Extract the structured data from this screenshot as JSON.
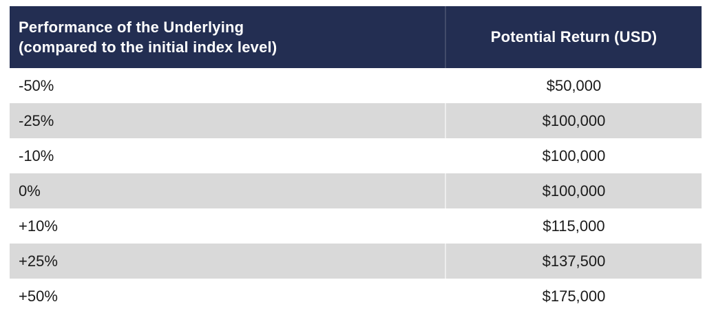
{
  "colors": {
    "header_bg": "#232e52",
    "header_text": "#ffffff",
    "row_bg": "#ffffff",
    "row_alt_bg": "#d9d9d9",
    "body_text": "#1a1a1a",
    "bottom_border": "#8e98aa"
  },
  "table": {
    "header": {
      "performance_line1": "Performance of the Underlying",
      "performance_line2": "(compared to the initial index level)",
      "potential_return": "Potential Return (USD)"
    },
    "rows": [
      {
        "performance": "-50%",
        "potential_return": "$50,000"
      },
      {
        "performance": "-25%",
        "potential_return": "$100,000"
      },
      {
        "performance": "-10%",
        "potential_return": "$100,000"
      },
      {
        "performance": "0%",
        "potential_return": "$100,000"
      },
      {
        "performance": "+10%",
        "potential_return": "$115,000"
      },
      {
        "performance": "+25%",
        "potential_return": "$137,500"
      },
      {
        "performance": "+50%",
        "potential_return": "$175,000"
      }
    ]
  },
  "chart_data": {
    "type": "table",
    "columns": [
      "Performance of the Underlying (compared to the initial index level)",
      "Potential Return (USD)"
    ],
    "rows": [
      [
        "-50%",
        "$50,000"
      ],
      [
        "-25%",
        "$100,000"
      ],
      [
        "-10%",
        "$100,000"
      ],
      [
        "0%",
        "$100,000"
      ],
      [
        "+10%",
        "$115,000"
      ],
      [
        "+25%",
        "$137,500"
      ],
      [
        "+50%",
        "$175,000"
      ]
    ]
  }
}
